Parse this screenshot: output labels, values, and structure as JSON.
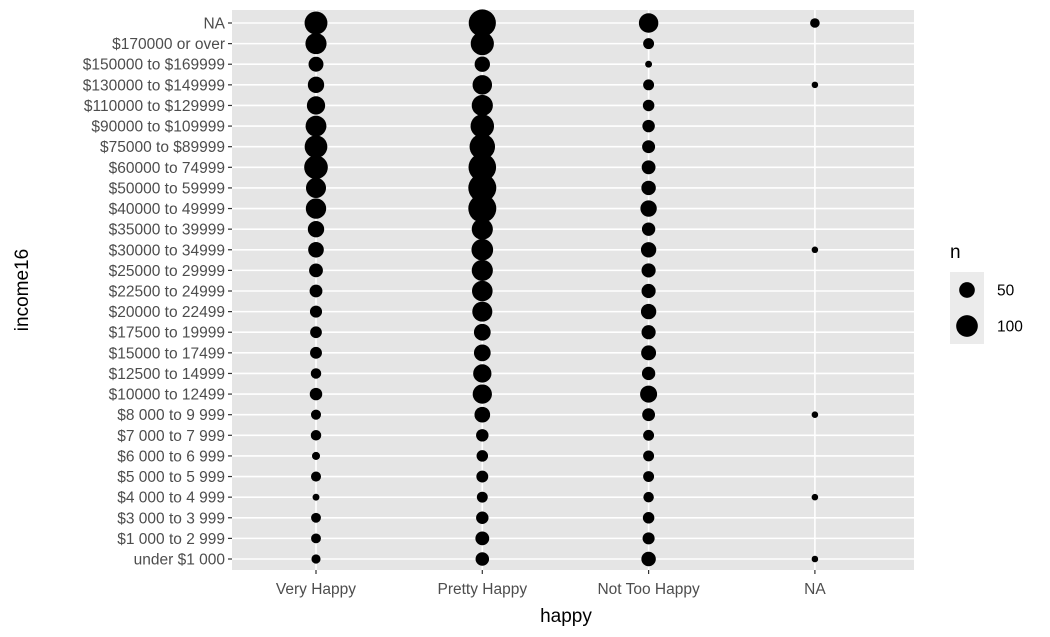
{
  "chart_data": {
    "type": "scatter",
    "xlabel": "happy",
    "ylabel": "income16",
    "x_categories": [
      "Very Happy",
      "Pretty Happy",
      "Not Too Happy",
      "NA"
    ],
    "y_categories": [
      "under $1 000",
      "$1 000 to 2 999",
      "$3 000 to 3 999",
      "$4 000 to 4 999",
      "$5 000 to 5 999",
      "$6 000 to 6 999",
      "$7 000 to 7 999",
      "$8 000 to 9 999",
      "$10000 to 12499",
      "$12500 to 14999",
      "$15000 to 17499",
      "$17500 to 19999",
      "$20000 to 22499",
      "$22500 to 24999",
      "$25000 to 29999",
      "$30000 to 34999",
      "$35000 to 39999",
      "$40000 to 49999",
      "$50000 to 59999",
      "$60000 to 74999",
      "$75000 to $89999",
      "$90000 to $109999",
      "$110000 to $129999",
      "$130000 to $149999",
      "$150000 to $169999",
      "$170000 or over",
      "NA"
    ],
    "size_variable": "n",
    "points": [
      {
        "x": "Very Happy",
        "y": "NA",
        "n": 112
      },
      {
        "x": "Very Happy",
        "y": "$170000 or over",
        "n": 95
      },
      {
        "x": "Very Happy",
        "y": "$150000 to $169999",
        "n": 45
      },
      {
        "x": "Very Happy",
        "y": "$130000 to $149999",
        "n": 55
      },
      {
        "x": "Very Happy",
        "y": "$110000 to $129999",
        "n": 70
      },
      {
        "x": "Very Happy",
        "y": "$90000 to $109999",
        "n": 92
      },
      {
        "x": "Very Happy",
        "y": "$75000 to $89999",
        "n": 110
      },
      {
        "x": "Very Happy",
        "y": "$60000 to 74999",
        "n": 120
      },
      {
        "x": "Very Happy",
        "y": "$50000 to 59999",
        "n": 85
      },
      {
        "x": "Very Happy",
        "y": "$40000 to 49999",
        "n": 88
      },
      {
        "x": "Very Happy",
        "y": "$35000 to 39999",
        "n": 55
      },
      {
        "x": "Very Happy",
        "y": "$30000 to 34999",
        "n": 50
      },
      {
        "x": "Very Happy",
        "y": "$25000 to 29999",
        "n": 38
      },
      {
        "x": "Very Happy",
        "y": "$22500 to 24999",
        "n": 32
      },
      {
        "x": "Very Happy",
        "y": "$20000 to 22499",
        "n": 28
      },
      {
        "x": "Very Happy",
        "y": "$17500 to 19999",
        "n": 26
      },
      {
        "x": "Very Happy",
        "y": "$15000 to 17499",
        "n": 27
      },
      {
        "x": "Very Happy",
        "y": "$12500 to 14999",
        "n": 20
      },
      {
        "x": "Very Happy",
        "y": "$10000 to 12499",
        "n": 30
      },
      {
        "x": "Very Happy",
        "y": "$8 000 to 9 999",
        "n": 18
      },
      {
        "x": "Very Happy",
        "y": "$7 000 to 7 999",
        "n": 20
      },
      {
        "x": "Very Happy",
        "y": "$6 000 to 6 999",
        "n": 10
      },
      {
        "x": "Very Happy",
        "y": "$5 000 to 5 999",
        "n": 18
      },
      {
        "x": "Very Happy",
        "y": "$4 000 to 4 999",
        "n": 6
      },
      {
        "x": "Very Happy",
        "y": "$3 000 to 3 999",
        "n": 17
      },
      {
        "x": "Very Happy",
        "y": "$1 000 to 2 999",
        "n": 17
      },
      {
        "x": "Very Happy",
        "y": "under $1 000",
        "n": 14
      },
      {
        "x": "Pretty Happy",
        "y": "NA",
        "n": 160
      },
      {
        "x": "Pretty Happy",
        "y": "$170000 or over",
        "n": 115
      },
      {
        "x": "Pretty Happy",
        "y": "$150000 to $169999",
        "n": 48
      },
      {
        "x": "Pretty Happy",
        "y": "$130000 to $149999",
        "n": 80
      },
      {
        "x": "Pretty Happy",
        "y": "$110000 to $129999",
        "n": 95
      },
      {
        "x": "Pretty Happy",
        "y": "$90000 to $109999",
        "n": 118
      },
      {
        "x": "Pretty Happy",
        "y": "$75000 to $89999",
        "n": 140
      },
      {
        "x": "Pretty Happy",
        "y": "$60000 to 74999",
        "n": 165
      },
      {
        "x": "Pretty Happy",
        "y": "$50000 to 59999",
        "n": 170
      },
      {
        "x": "Pretty Happy",
        "y": "$40000 to 49999",
        "n": 170
      },
      {
        "x": "Pretty Happy",
        "y": "$35000 to 39999",
        "n": 95
      },
      {
        "x": "Pretty Happy",
        "y": "$30000 to 34999",
        "n": 100
      },
      {
        "x": "Pretty Happy",
        "y": "$25000 to 29999",
        "n": 95
      },
      {
        "x": "Pretty Happy",
        "y": "$22500 to 24999",
        "n": 90
      },
      {
        "x": "Pretty Happy",
        "y": "$20000 to 22499",
        "n": 85
      },
      {
        "x": "Pretty Happy",
        "y": "$17500 to 19999",
        "n": 58
      },
      {
        "x": "Pretty Happy",
        "y": "$15000 to 17499",
        "n": 58
      },
      {
        "x": "Pretty Happy",
        "y": "$12500 to 14999",
        "n": 70
      },
      {
        "x": "Pretty Happy",
        "y": "$10000 to 12499",
        "n": 78
      },
      {
        "x": "Pretty Happy",
        "y": "$8 000 to 9 999",
        "n": 50
      },
      {
        "x": "Pretty Happy",
        "y": "$7 000 to 7 999",
        "n": 30
      },
      {
        "x": "Pretty Happy",
        "y": "$6 000 to 6 999",
        "n": 25
      },
      {
        "x": "Pretty Happy",
        "y": "$5 000 to 5 999",
        "n": 27
      },
      {
        "x": "Pretty Happy",
        "y": "$4 000 to 4 999",
        "n": 22
      },
      {
        "x": "Pretty Happy",
        "y": "$3 000 to 3 999",
        "n": 30
      },
      {
        "x": "Pretty Happy",
        "y": "$1 000 to 2 999",
        "n": 38
      },
      {
        "x": "Pretty Happy",
        "y": "under $1 000",
        "n": 36
      },
      {
        "x": "Not Too Happy",
        "y": "NA",
        "n": 80
      },
      {
        "x": "Not Too Happy",
        "y": "$170000 or over",
        "n": 22
      },
      {
        "x": "Not Too Happy",
        "y": "$150000 to $169999",
        "n": 6
      },
      {
        "x": "Not Too Happy",
        "y": "$130000 to $149999",
        "n": 22
      },
      {
        "x": "Not Too Happy",
        "y": "$110000 to $129999",
        "n": 25
      },
      {
        "x": "Not Too Happy",
        "y": "$90000 to $109999",
        "n": 30
      },
      {
        "x": "Not Too Happy",
        "y": "$75000 to $89999",
        "n": 33
      },
      {
        "x": "Not Too Happy",
        "y": "$60000 to 74999",
        "n": 38
      },
      {
        "x": "Not Too Happy",
        "y": "$50000 to 59999",
        "n": 42
      },
      {
        "x": "Not Too Happy",
        "y": "$40000 to 49999",
        "n": 55
      },
      {
        "x": "Not Too Happy",
        "y": "$35000 to 39999",
        "n": 35
      },
      {
        "x": "Not Too Happy",
        "y": "$30000 to 34999",
        "n": 48
      },
      {
        "x": "Not Too Happy",
        "y": "$25000 to 29999",
        "n": 40
      },
      {
        "x": "Not Too Happy",
        "y": "$22500 to 24999",
        "n": 40
      },
      {
        "x": "Not Too Happy",
        "y": "$20000 to 22499",
        "n": 48
      },
      {
        "x": "Not Too Happy",
        "y": "$17500 to 19999",
        "n": 40
      },
      {
        "x": "Not Too Happy",
        "y": "$15000 to 17499",
        "n": 45
      },
      {
        "x": "Not Too Happy",
        "y": "$12500 to 14999",
        "n": 35
      },
      {
        "x": "Not Too Happy",
        "y": "$10000 to 12499",
        "n": 60
      },
      {
        "x": "Not Too Happy",
        "y": "$8 000 to 9 999",
        "n": 32
      },
      {
        "x": "Not Too Happy",
        "y": "$7 000 to 7 999",
        "n": 22
      },
      {
        "x": "Not Too Happy",
        "y": "$6 000 to 6 999",
        "n": 22
      },
      {
        "x": "Not Too Happy",
        "y": "$5 000 to 5 999",
        "n": 22
      },
      {
        "x": "Not Too Happy",
        "y": "$4 000 to 4 999",
        "n": 20
      },
      {
        "x": "Not Too Happy",
        "y": "$3 000 to 3 999",
        "n": 25
      },
      {
        "x": "Not Too Happy",
        "y": "$1 000 to 2 999",
        "n": 28
      },
      {
        "x": "Not Too Happy",
        "y": "under $1 000",
        "n": 42
      },
      {
        "x": "NA",
        "y": "NA",
        "n": 16
      },
      {
        "x": "NA",
        "y": "$130000 to $149999",
        "n": 5
      },
      {
        "x": "NA",
        "y": "$30000 to 34999",
        "n": 5
      },
      {
        "x": "NA",
        "y": "$8 000 to 9 999",
        "n": 5
      },
      {
        "x": "NA",
        "y": "$4 000 to 4 999",
        "n": 5
      },
      {
        "x": "NA",
        "y": "under $1 000",
        "n": 5
      }
    ],
    "legend": {
      "title": "n",
      "position": "right",
      "entries": [
        {
          "label": "50",
          "n": 50
        },
        {
          "label": "100",
          "n": 100
        }
      ]
    },
    "size_range_n": [
      1,
      170
    ],
    "grid": true,
    "panel_background": "#e5e5e5",
    "grid_color": "#ffffff",
    "point_color": "#000000"
  }
}
